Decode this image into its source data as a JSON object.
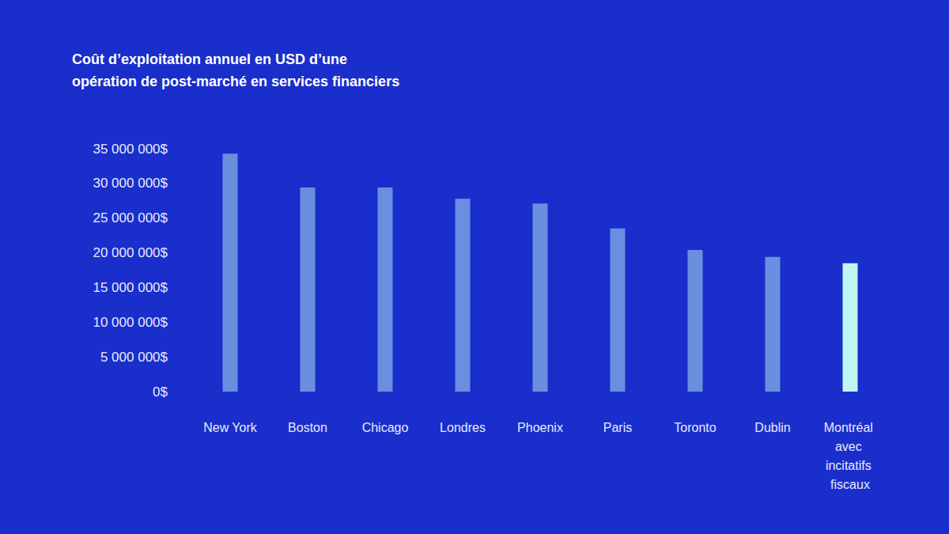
{
  "chart_data": {
    "type": "bar",
    "title": "Coût d’exploitation annuel en USD d’une opération de post-marché en services financiers",
    "categories": [
      "New York",
      "Boston",
      "Chicago",
      "Londres",
      "Phoenix",
      "Paris",
      "Toronto",
      "Dublin",
      "Montréal avec incitatifs fiscaux"
    ],
    "values": [
      34300000,
      29400000,
      29400000,
      27800000,
      27100000,
      23500000,
      20400000,
      19400000,
      18500000
    ],
    "colors": [
      "#6b8fe0",
      "#6b8fe0",
      "#6b8fe0",
      "#6b8fe0",
      "#6b8fe0",
      "#6b8fe0",
      "#6b8fe0",
      "#6b8fe0",
      "#bff5f2"
    ],
    "ylim": [
      0,
      35000000
    ],
    "yticks": [
      {
        "value": 0,
        "label": "0$"
      },
      {
        "value": 5000000,
        "label": "5 000 000$"
      },
      {
        "value": 10000000,
        "label": "10 000 000$"
      },
      {
        "value": 15000000,
        "label": "15 000 000$"
      },
      {
        "value": 20000000,
        "label": "20 000 000$"
      },
      {
        "value": 25000000,
        "label": "25 000 000$"
      },
      {
        "value": 30000000,
        "label": "30 000 000$"
      },
      {
        "value": 35000000,
        "label": "35 000 000$"
      }
    ],
    "grid": false
  }
}
